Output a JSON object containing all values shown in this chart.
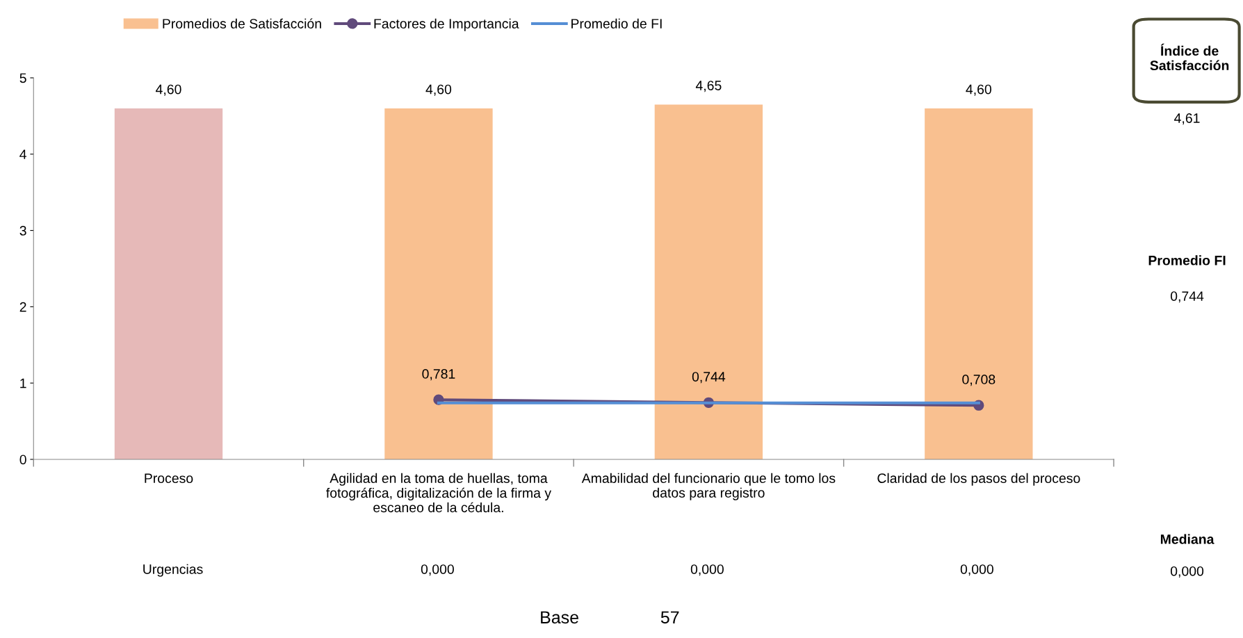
{
  "chart_data": {
    "type": "bar",
    "categories": [
      "Proceso",
      "Agilidad en la toma de huellas, toma fotográfica, digitalización de la firma y escaneo de la cédula.",
      "Amabilidad del funcionario que le tomo los datos para registro",
      "Claridad de los pasos del proceso"
    ],
    "series": [
      {
        "name": "Promedios de Satisfacción",
        "colors": [
          "#e6b9b8",
          "#f9c090",
          "#f9c090",
          "#f9c090"
        ],
        "color": "#f9c090",
        "values": [
          4.6,
          4.6,
          4.65,
          4.6
        ],
        "value_labels": [
          "4,60",
          "4,60",
          "4,65",
          "4,60"
        ]
      },
      {
        "name": "Factores de Importancia",
        "type": "line",
        "color": "#604a7b",
        "marker": "circle",
        "values": [
          null,
          0.781,
          0.744,
          0.708
        ],
        "value_labels": [
          null,
          "0,781",
          "0,744",
          "0,708"
        ]
      },
      {
        "name": "Promedio de FI",
        "type": "line",
        "color": "#558ed5",
        "marker": "none",
        "values": [
          null,
          0.74,
          0.74,
          0.74
        ]
      }
    ],
    "ylim": [
      0,
      5
    ],
    "yticks": [
      0,
      1,
      2,
      3,
      4,
      5
    ],
    "grid": false,
    "legend": "top left",
    "annotations": [
      "Índice de Satisfacción",
      "4,61",
      "Promedio FI",
      "0,744",
      "Mediana",
      "0,000",
      "Urgencias",
      "0,000",
      "0,000",
      "0,000",
      "Base",
      "57"
    ]
  }
}
